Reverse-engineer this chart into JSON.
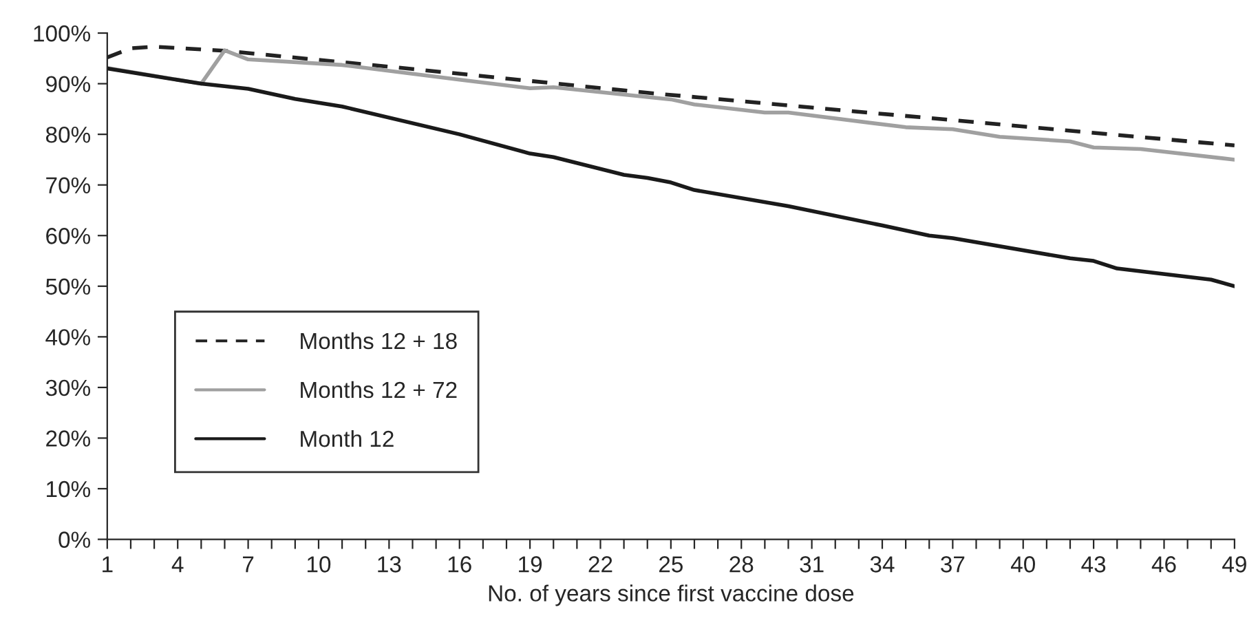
{
  "chart_data": {
    "type": "line",
    "xlabel": "No. of years since first vaccine dose",
    "series": [
      {
        "name": "Months 12 + 18",
        "color": "#222222",
        "line_style": "dashed",
        "x": [
          1,
          2,
          3,
          6,
          14,
          24,
          37,
          49
        ],
        "values": [
          95.2,
          97,
          97.3,
          96.5,
          92.9,
          88.2,
          82.8,
          77.8
        ]
      },
      {
        "name": "Months 12 + 72",
        "color": "#a0a0a0",
        "line_style": "solid",
        "x": [
          1,
          5,
          6,
          7,
          11,
          16,
          19,
          20,
          25,
          26,
          29,
          30,
          35,
          37,
          39,
          42,
          43,
          45,
          49
        ],
        "values": [
          93.1,
          90,
          96.6,
          94.8,
          93.7,
          90.8,
          89.1,
          89.3,
          86.9,
          85.9,
          84.3,
          84.3,
          81.4,
          81,
          79.5,
          78.6,
          77.4,
          77.1,
          75
        ]
      },
      {
        "name": "Month 12",
        "color": "#1a1a1a",
        "line_style": "solid",
        "x": [
          1,
          5,
          7,
          9,
          11,
          16,
          19,
          20,
          23,
          24,
          25,
          26,
          30,
          34,
          36,
          37,
          42,
          43,
          44,
          48,
          49
        ],
        "values": [
          93,
          90,
          89,
          87,
          85.5,
          80,
          76.2,
          75.5,
          72,
          71.4,
          70.5,
          69,
          65.8,
          62,
          60,
          59.5,
          55.5,
          55,
          53.5,
          51.3,
          50
        ]
      }
    ],
    "xlim": [
      1,
      49
    ],
    "xticks": [
      1,
      {
        "value": 2,
        "label": null
      },
      {
        "value": 3,
        "label": null
      },
      4,
      {
        "value": 5,
        "label": null
      },
      {
        "value": 6,
        "label": null
      },
      7,
      {
        "value": 8,
        "label": null
      },
      {
        "value": 9,
        "label": null
      },
      10,
      {
        "value": 11,
        "label": null
      },
      {
        "value": 12,
        "label": null
      },
      13,
      {
        "value": 14,
        "label": null
      },
      {
        "value": 15,
        "label": null
      },
      16,
      {
        "value": 17,
        "label": null
      },
      {
        "value": 18,
        "label": null
      },
      19,
      {
        "value": 20,
        "label": null
      },
      {
        "value": 21,
        "label": null
      },
      22,
      {
        "value": 23,
        "label": null
      },
      {
        "value": 24,
        "label": null
      },
      25,
      {
        "value": 26,
        "label": null
      },
      {
        "value": 27,
        "label": null
      },
      28,
      {
        "value": 29,
        "label": null
      },
      {
        "value": 30,
        "label": null
      },
      31,
      {
        "value": 32,
        "label": null
      },
      {
        "value": 33,
        "label": null
      },
      34,
      {
        "value": 35,
        "label": null
      },
      {
        "value": 36,
        "label": null
      },
      37,
      {
        "value": 38,
        "label": null
      },
      {
        "value": 39,
        "label": null
      },
      40,
      {
        "value": 41,
        "label": null
      },
      {
        "value": 42,
        "label": null
      },
      43,
      {
        "value": 44,
        "label": null
      },
      {
        "value": 45,
        "label": null
      },
      46,
      {
        "value": 47,
        "label": null
      },
      {
        "value": 48,
        "label": null
      },
      49
    ],
    "ylim": [
      0,
      100
    ],
    "yticks": [
      {
        "value": 0,
        "label": "0%"
      },
      {
        "value": 10,
        "label": "10%"
      },
      {
        "value": 20,
        "label": "20%"
      },
      {
        "value": 30,
        "label": "30%"
      },
      {
        "value": 40,
        "label": "40%"
      },
      {
        "value": 50,
        "label": "50%"
      },
      {
        "value": 60,
        "label": "60%"
      },
      {
        "value": 70,
        "label": "70%"
      },
      {
        "value": 80,
        "label": "80%"
      },
      {
        "value": 90,
        "label": "90%"
      },
      {
        "value": 100,
        "label": "100%"
      }
    ],
    "grid": false,
    "legend": "bottom left",
    "marker": "none"
  }
}
